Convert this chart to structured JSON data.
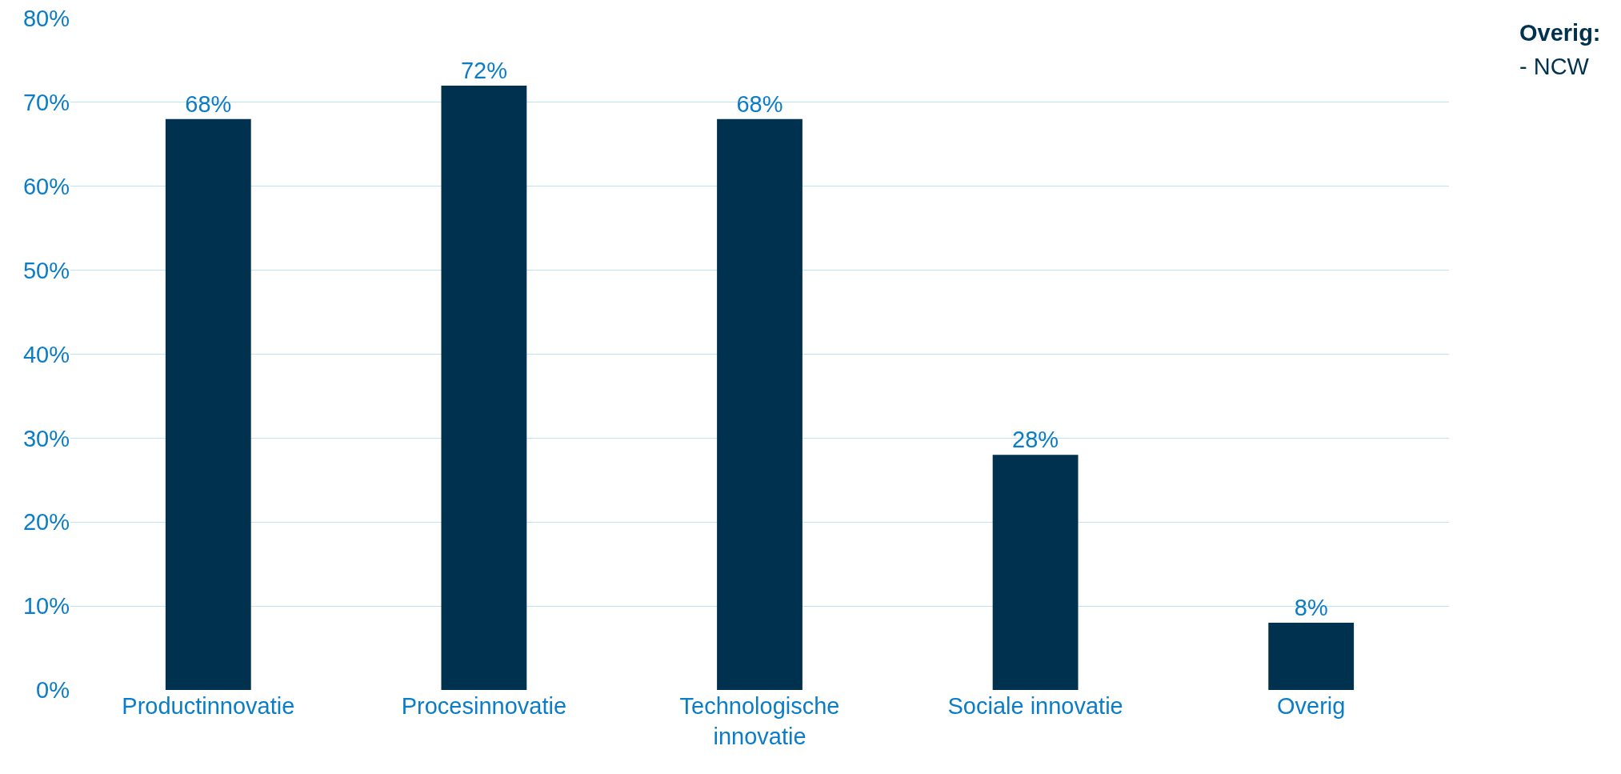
{
  "chart_data": {
    "type": "bar",
    "categories": [
      "Productinnovatie",
      "Procesinnovatie",
      "Technologische\ninnovatie",
      "Sociale innovatie",
      "Overig"
    ],
    "values": [
      68,
      72,
      68,
      28,
      8
    ],
    "value_labels": [
      "68%",
      "72%",
      "68%",
      "28%",
      "8%"
    ],
    "color": "#003250",
    "ylim": [
      0,
      80
    ],
    "yticks": [
      {
        "value": 0,
        "label": "0%"
      },
      {
        "value": 10,
        "label": "10%"
      },
      {
        "value": 20,
        "label": "20%"
      },
      {
        "value": 30,
        "label": "30%"
      },
      {
        "value": 40,
        "label": "40%"
      },
      {
        "value": 50,
        "label": "50%"
      },
      {
        "value": 60,
        "label": "60%"
      },
      {
        "value": 70,
        "label": "70%"
      },
      {
        "value": 80,
        "label": "80%"
      }
    ],
    "grid": "y",
    "annotations": [
      "Overig:",
      "- NCW"
    ]
  }
}
